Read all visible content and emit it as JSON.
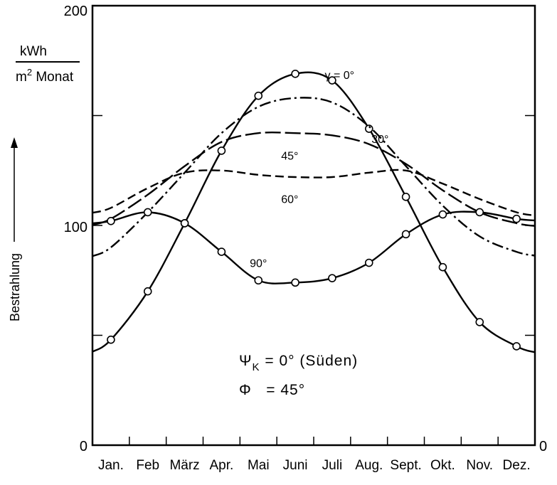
{
  "chart_data": {
    "type": "line",
    "ylabel": "Bestrahlung",
    "unit_top": "kWh",
    "unit_bottom_base": "m",
    "unit_bottom_sup": "2",
    "unit_bottom_rest": " Monat",
    "ylim": [
      0,
      200
    ],
    "yticks": [
      "200",
      "100",
      "0"
    ],
    "yticks_right": [
      "0"
    ],
    "categories": [
      "Jan.",
      "Feb",
      "März",
      "Apr.",
      "Mai",
      "Juni",
      "Juli",
      "Aug.",
      "Sept.",
      "Okt.",
      "Nov.",
      "Dez."
    ],
    "annotations": {
      "line1": "Ψ",
      "line1_sub": "K",
      "line1_rest": " = 0° (Süden)",
      "line2": "Φ   = 45°"
    },
    "series": [
      {
        "name": "γ = 0°",
        "style": "solid-markers",
        "values": [
          48,
          70,
          101,
          134,
          159,
          169,
          166,
          144,
          113,
          81,
          56,
          45
        ]
      },
      {
        "name": "30°",
        "style": "dash-dot",
        "values": [
          90,
          106,
          124,
          142,
          154,
          158,
          156,
          145,
          127,
          109,
          95,
          88
        ]
      },
      {
        "name": "45°",
        "style": "long-dash",
        "values": [
          103,
          114,
          127,
          138,
          142,
          142,
          141,
          137,
          128,
          116,
          106,
          101
        ]
      },
      {
        "name": "60°",
        "style": "dash",
        "values": [
          108,
          117,
          124,
          125,
          123,
          122,
          122,
          124,
          125,
          119,
          112,
          106
        ]
      },
      {
        "name": "90°",
        "style": "solid-markers",
        "values": [
          102,
          106,
          101,
          88,
          75,
          74,
          76,
          83,
          96,
          105,
          106,
          103
        ]
      }
    ]
  }
}
